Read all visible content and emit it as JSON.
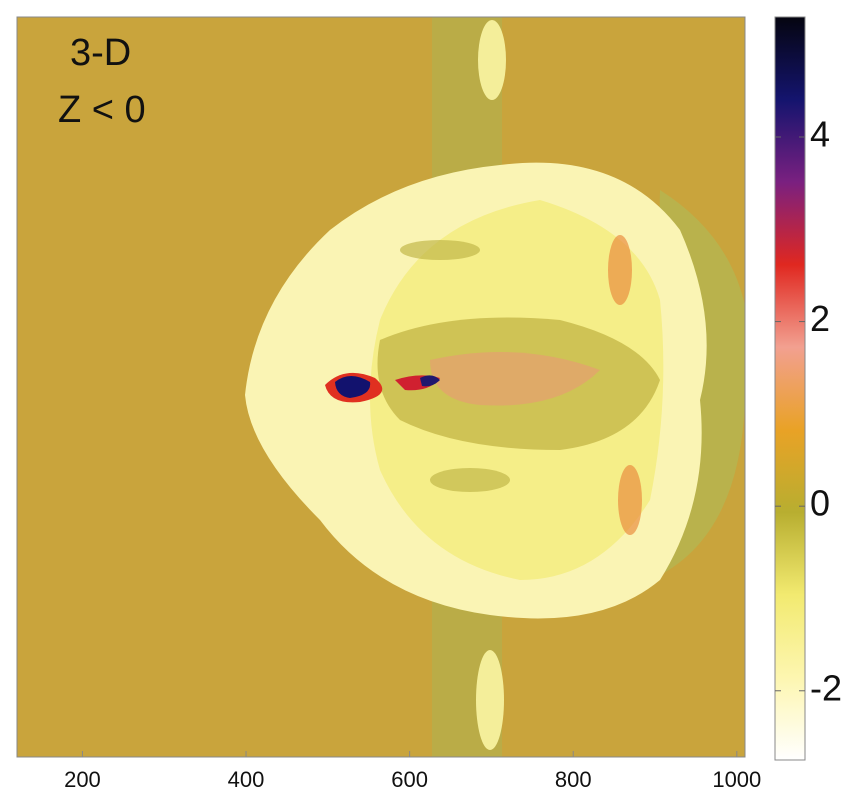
{
  "chart_data": {
    "type": "image",
    "annotations": [
      "3-D",
      "Z < 0"
    ],
    "xlim": [
      120,
      1010
    ],
    "xticks": [
      200,
      400,
      600,
      800,
      1000
    ],
    "colorbar": {
      "clim": [
        -2.75,
        5.3
      ],
      "ticks": [
        -2,
        0,
        2,
        4
      ],
      "colors": [
        "#ffffff",
        "#fdf6b0",
        "#f2ea70",
        "#b8ae30",
        "#e9a226",
        "#f2a090",
        "#e02820",
        "#7a2080",
        "#14146e",
        "#050510"
      ]
    }
  }
}
